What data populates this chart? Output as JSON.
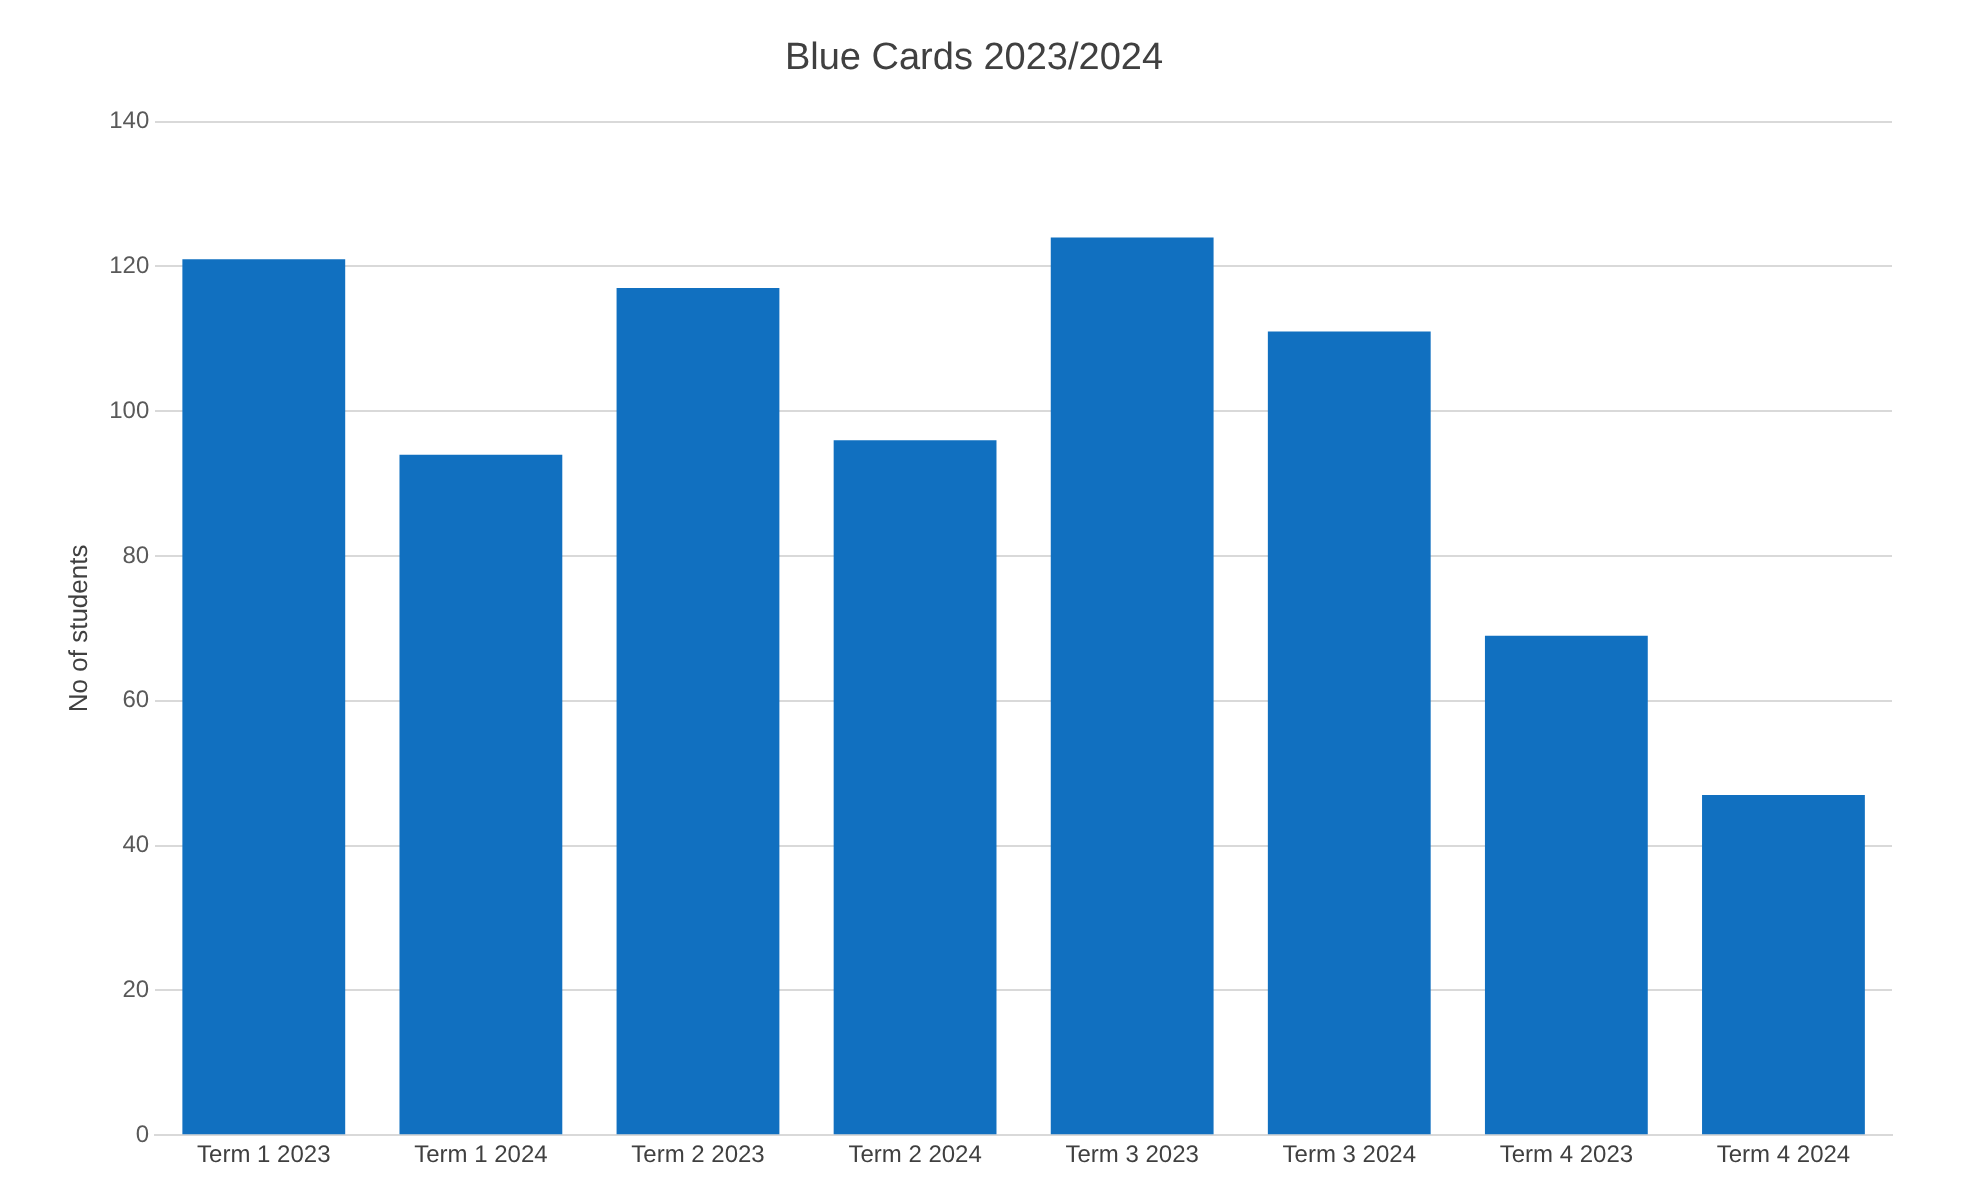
{
  "chart_data": {
    "type": "bar",
    "title": "Blue Cards 2023/2024",
    "ylabel": "No of students",
    "categories": [
      "Term 1 2023",
      "Term 1 2024",
      "Term 2 2023",
      "Term 2 2024",
      "Term 3 2023",
      "Term 3 2024",
      "Term 4 2023",
      "Term 4 2024"
    ],
    "values": [
      121,
      94,
      117,
      96,
      124,
      111,
      69,
      47
    ],
    "color": "#1170c0",
    "ylim": [
      0,
      140
    ],
    "yticks": [
      0,
      20,
      40,
      60,
      80,
      100,
      120,
      140
    ],
    "grid": "y",
    "legend": false
  }
}
